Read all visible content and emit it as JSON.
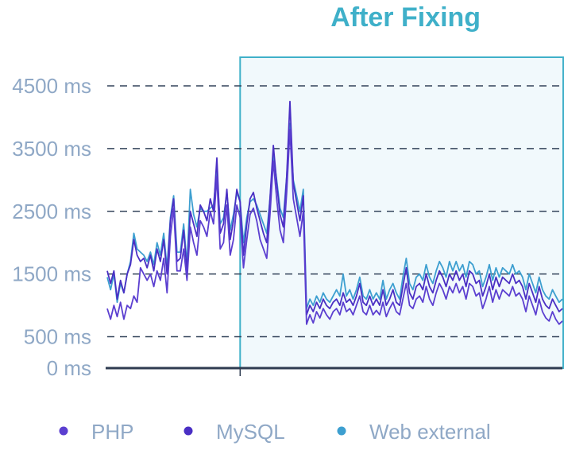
{
  "chart_data": {
    "type": "line",
    "title": "",
    "xlabel": "",
    "ylabel": "",
    "ylim": [
      0,
      5000
    ],
    "y_ticks": [
      {
        "value": 0,
        "label": "0 ms"
      },
      {
        "value": 500,
        "label": "500 ms"
      },
      {
        "value": 1500,
        "label": "1500 ms"
      },
      {
        "value": 2500,
        "label": "2500 ms"
      },
      {
        "value": 3500,
        "label": "3500 ms"
      },
      {
        "value": 4500,
        "label": "4500 ms"
      }
    ],
    "grid": "dashed horizontal",
    "legend_position": "bottom",
    "annotation": {
      "label": "After Fixing",
      "start_index": 40,
      "color": "#3fb0c9",
      "fill": "#f1f9fc"
    },
    "series": [
      {
        "name": "PHP",
        "color": "#5b3fd0",
        "values": [
          950,
          780,
          1000,
          820,
          1050,
          780,
          1000,
          950,
          1150,
          1050,
          1600,
          1500,
          1400,
          1500,
          1300,
          1550,
          1400,
          1750,
          1200,
          2100,
          2550,
          1550,
          1550,
          1900,
          1400,
          2250,
          2000,
          1800,
          2350,
          2250,
          2100,
          2500,
          2300,
          3050,
          1900,
          2000,
          2600,
          1800,
          2050,
          2600,
          2400,
          1600,
          2050,
          2450,
          2550,
          2350,
          2050,
          1900,
          1750,
          2450,
          3300,
          2700,
          2200,
          2000,
          2800,
          3800,
          2700,
          2400,
          2100,
          2500,
          700,
          850,
          720,
          900,
          800,
          950,
          850,
          780,
          900,
          950,
          850,
          1050,
          900,
          950,
          850,
          1000,
          1150,
          900,
          850,
          1000,
          850,
          920,
          850,
          1050,
          820,
          950,
          1050,
          900,
          850,
          1100,
          1350,
          1000,
          950,
          1100,
          1150,
          1050,
          1300,
          1100,
          1000,
          1200,
          1350,
          1250,
          1100,
          1300,
          1200,
          1350,
          1200,
          1300,
          1100,
          1350,
          1300,
          1150,
          1200,
          950,
          1100,
          1300,
          1050,
          1250,
          1100,
          1250,
          1200,
          1150,
          1300,
          1150,
          1200,
          1100,
          900,
          1150,
          1000,
          850,
          1100,
          900,
          800,
          750,
          900,
          780,
          700,
          750
        ]
      },
      {
        "name": "MySQL",
        "color": "#4a2fc4",
        "values": [
          1550,
          1350,
          1550,
          1100,
          1400,
          1200,
          1500,
          1650,
          2050,
          1800,
          1700,
          1750,
          1600,
          1800,
          1550,
          1900,
          1700,
          2050,
          1500,
          2350,
          2700,
          1700,
          1750,
          2200,
          1550,
          2500,
          2300,
          2100,
          2600,
          2500,
          2350,
          2700,
          2500,
          3350,
          2150,
          2300,
          2850,
          2050,
          2350,
          2850,
          2650,
          1800,
          2300,
          2700,
          2800,
          2550,
          2350,
          2150,
          2000,
          2700,
          3550,
          2950,
          2450,
          2250,
          3050,
          4250,
          2950,
          2650,
          2350,
          2750,
          850,
          1000,
          900,
          1050,
          950,
          1100,
          1000,
          950,
          1050,
          1100,
          1000,
          1200,
          1050,
          1100,
          1000,
          1150,
          1350,
          1050,
          1000,
          1150,
          1000,
          1100,
          1000,
          1250,
          1000,
          1100,
          1250,
          1050,
          1000,
          1300,
          1600,
          1200,
          1100,
          1300,
          1350,
          1250,
          1500,
          1300,
          1200,
          1400,
          1550,
          1450,
          1300,
          1500,
          1400,
          1550,
          1400,
          1500,
          1300,
          1550,
          1500,
          1350,
          1400,
          1150,
          1300,
          1500,
          1250,
          1450,
          1300,
          1450,
          1400,
          1350,
          1500,
          1350,
          1400,
          1300,
          1100,
          1350,
          1200,
          1050,
          1300,
          1100,
          1000,
          950,
          1100,
          1000,
          900,
          950
        ]
      },
      {
        "name": "Web external",
        "color": "#3d9fd0",
        "values": [
          1450,
          1250,
          1500,
          1050,
          1350,
          1200,
          1500,
          1700,
          2150,
          1900,
          1850,
          1800,
          1700,
          1850,
          1650,
          2000,
          1800,
          2150,
          1600,
          2400,
          2750,
          1850,
          1850,
          2300,
          1650,
          2850,
          2450,
          2250,
          2550,
          2500,
          2500,
          2550,
          2600,
          3150,
          2300,
          2400,
          2800,
          2200,
          2450,
          2800,
          2650,
          2000,
          2400,
          2650,
          2700,
          2600,
          2450,
          2300,
          2150,
          2700,
          3400,
          3000,
          2550,
          2400,
          3050,
          3900,
          3000,
          2750,
          2500,
          2850,
          950,
          1100,
          1000,
          1150,
          1050,
          1200,
          1100,
          1050,
          1150,
          1250,
          1150,
          1500,
          1150,
          1250,
          1100,
          1250,
          1450,
          1150,
          1100,
          1250,
          1100,
          1200,
          1100,
          1400,
          1100,
          1250,
          1350,
          1200,
          1100,
          1450,
          1750,
          1350,
          1250,
          1450,
          1500,
          1400,
          1650,
          1450,
          1350,
          1550,
          1700,
          1600,
          1450,
          1700,
          1550,
          1700,
          1550,
          1650,
          1450,
          1700,
          1650,
          1500,
          1550,
          1300,
          1450,
          1650,
          1400,
          1600,
          1450,
          1600,
          1550,
          1500,
          1650,
          1500,
          1550,
          1450,
          1250,
          1500,
          1350,
          1200,
          1450,
          1250,
          1150,
          1100,
          1250,
          1150,
          1050,
          1100
        ]
      }
    ]
  }
}
